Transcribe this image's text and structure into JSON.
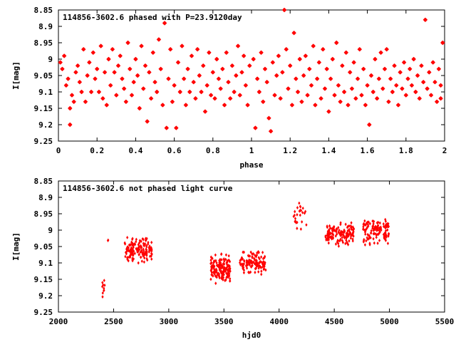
{
  "chart_data": [
    {
      "type": "scatter",
      "title": "114856-3602.6 phased with P=23.9120day",
      "xlabel": "phase",
      "ylabel": "I[mag]",
      "xlim": [
        0,
        2
      ],
      "ylim": [
        9.25,
        8.85
      ],
      "y_inverted": true,
      "xticks": [
        "0",
        "0.2",
        "0.4",
        "0.6",
        "0.8",
        "1",
        "1.2",
        "1.4",
        "1.6",
        "1.8",
        "2"
      ],
      "yticks": [
        "8.85",
        "8.9",
        "8.95",
        "9",
        "9.05",
        "9.1",
        "9.15",
        "9.2",
        "9.25"
      ],
      "marker": "star",
      "color": "#ff0000",
      "points": [
        [
          0.01,
          9.01
        ],
        [
          0.02,
          9.03
        ],
        [
          0.03,
          8.99
        ],
        [
          0.04,
          9.08
        ],
        [
          0.05,
          9.06
        ],
        [
          0.06,
          9.2
        ],
        [
          0.06,
          9.15
        ],
        [
          0.07,
          9.11
        ],
        [
          0.08,
          9.13
        ],
        [
          0.09,
          9.04
        ],
        [
          0.1,
          9.02
        ],
        [
          0.11,
          9.07
        ],
        [
          0.12,
          9.1
        ],
        [
          0.13,
          8.97
        ],
        [
          0.14,
          9.13
        ],
        [
          0.15,
          9.05
        ],
        [
          0.16,
          9.01
        ],
        [
          0.17,
          9.1
        ],
        [
          0.18,
          8.98
        ],
        [
          0.19,
          9.06
        ],
        [
          0.2,
          9.03
        ],
        [
          0.21,
          9.1
        ],
        [
          0.22,
          8.96
        ],
        [
          0.23,
          9.12
        ],
        [
          0.24,
          9.04
        ],
        [
          0.25,
          9.14
        ],
        [
          0.26,
          9.0
        ],
        [
          0.27,
          9.08
        ],
        [
          0.28,
          8.97
        ],
        [
          0.29,
          9.04
        ],
        [
          0.3,
          9.11
        ],
        [
          0.31,
          9.02
        ],
        [
          0.32,
          8.99
        ],
        [
          0.33,
          9.06
        ],
        [
          0.34,
          9.09
        ],
        [
          0.35,
          9.13
        ],
        [
          0.36,
          8.95
        ],
        [
          0.37,
          9.03
        ],
        [
          0.38,
          9.11
        ],
        [
          0.39,
          9.07
        ],
        [
          0.4,
          9.0
        ],
        [
          0.41,
          9.05
        ],
        [
          0.42,
          9.15
        ],
        [
          0.43,
          8.96
        ],
        [
          0.44,
          9.09
        ],
        [
          0.45,
          9.02
        ],
        [
          0.46,
          9.19
        ],
        [
          0.47,
          9.04
        ],
        [
          0.48,
          9.12
        ],
        [
          0.49,
          8.98
        ],
        [
          0.5,
          9.07
        ],
        [
          0.51,
          9.1
        ],
        [
          0.52,
          8.94
        ],
        [
          0.53,
          9.03
        ],
        [
          0.54,
          9.14
        ],
        [
          0.55,
          8.89
        ],
        [
          0.56,
          9.21
        ],
        [
          0.57,
          9.06
        ],
        [
          0.58,
          8.97
        ],
        [
          0.59,
          9.13
        ],
        [
          0.6,
          9.08
        ],
        [
          0.61,
          9.21
        ],
        [
          0.62,
          9.01
        ],
        [
          0.63,
          9.1
        ],
        [
          0.64,
          8.96
        ],
        [
          0.65,
          9.06
        ],
        [
          0.66,
          9.14
        ],
        [
          0.67,
          9.03
        ],
        [
          0.68,
          9.1
        ],
        [
          0.69,
          8.99
        ],
        [
          0.7,
          9.07
        ],
        [
          0.71,
          9.12
        ],
        [
          0.72,
          8.97
        ],
        [
          0.73,
          9.05
        ],
        [
          0.74,
          9.1
        ],
        [
          0.75,
          9.02
        ],
        [
          0.76,
          9.16
        ],
        [
          0.77,
          9.08
        ],
        [
          0.78,
          8.98
        ],
        [
          0.79,
          9.11
        ],
        [
          0.8,
          9.04
        ],
        [
          0.81,
          9.12
        ],
        [
          0.82,
          9.0
        ],
        [
          0.83,
          9.06
        ],
        [
          0.84,
          9.09
        ],
        [
          0.85,
          9.03
        ],
        [
          0.86,
          9.14
        ],
        [
          0.87,
          8.98
        ],
        [
          0.88,
          9.07
        ],
        [
          0.89,
          9.12
        ],
        [
          0.9,
          9.02
        ],
        [
          0.91,
          9.1
        ],
        [
          0.92,
          9.05
        ],
        [
          0.93,
          8.96
        ],
        [
          0.94,
          9.11
        ],
        [
          0.95,
          9.04
        ],
        [
          0.96,
          8.99
        ],
        [
          0.97,
          9.08
        ],
        [
          0.98,
          9.14
        ],
        [
          0.99,
          9.02
        ],
        [
          1.01,
          9.0
        ],
        [
          1.02,
          9.21
        ],
        [
          1.03,
          9.06
        ],
        [
          1.04,
          9.1
        ],
        [
          1.05,
          8.98
        ],
        [
          1.06,
          9.13
        ],
        [
          1.07,
          9.03
        ],
        [
          1.08,
          9.07
        ],
        [
          1.09,
          9.18
        ],
        [
          1.1,
          9.22
        ],
        [
          1.11,
          9.01
        ],
        [
          1.12,
          9.11
        ],
        [
          1.13,
          9.05
        ],
        [
          1.14,
          8.99
        ],
        [
          1.15,
          9.12
        ],
        [
          1.16,
          9.04
        ],
        [
          1.17,
          8.85
        ],
        [
          1.18,
          8.97
        ],
        [
          1.19,
          9.09
        ],
        [
          1.2,
          9.02
        ],
        [
          1.21,
          9.14
        ],
        [
          1.22,
          8.92
        ],
        [
          1.23,
          9.06
        ],
        [
          1.24,
          9.1
        ],
        [
          1.25,
          9.0
        ],
        [
          1.26,
          9.13
        ],
        [
          1.27,
          9.05
        ],
        [
          1.28,
          8.99
        ],
        [
          1.29,
          9.11
        ],
        [
          1.3,
          9.03
        ],
        [
          1.31,
          9.08
        ],
        [
          1.32,
          8.96
        ],
        [
          1.33,
          9.14
        ],
        [
          1.34,
          9.06
        ],
        [
          1.35,
          9.01
        ],
        [
          1.36,
          9.12
        ],
        [
          1.37,
          8.97
        ],
        [
          1.38,
          9.09
        ],
        [
          1.39,
          9.03
        ],
        [
          1.4,
          9.16
        ],
        [
          1.41,
          9.06
        ],
        [
          1.42,
          9.0
        ],
        [
          1.43,
          9.11
        ],
        [
          1.44,
          8.95
        ],
        [
          1.45,
          9.08
        ],
        [
          1.46,
          9.13
        ],
        [
          1.47,
          9.02
        ],
        [
          1.48,
          9.1
        ],
        [
          1.49,
          8.98
        ],
        [
          1.5,
          9.14
        ],
        [
          1.51,
          9.04
        ],
        [
          1.52,
          9.09
        ],
        [
          1.53,
          9.01
        ],
        [
          1.54,
          9.12
        ],
        [
          1.55,
          9.06
        ],
        [
          1.56,
          8.97
        ],
        [
          1.57,
          9.11
        ],
        [
          1.58,
          9.03
        ],
        [
          1.59,
          9.14
        ],
        [
          1.6,
          9.08
        ],
        [
          1.61,
          9.2
        ],
        [
          1.62,
          9.05
        ],
        [
          1.63,
          9.1
        ],
        [
          1.64,
          9.0
        ],
        [
          1.65,
          9.12
        ],
        [
          1.66,
          9.06
        ],
        [
          1.67,
          8.98
        ],
        [
          1.68,
          9.09
        ],
        [
          1.69,
          9.03
        ],
        [
          1.7,
          8.97
        ],
        [
          1.71,
          9.13
        ],
        [
          1.72,
          9.06
        ],
        [
          1.73,
          9.1
        ],
        [
          1.74,
          9.02
        ],
        [
          1.75,
          9.08
        ],
        [
          1.76,
          9.14
        ],
        [
          1.77,
          9.04
        ],
        [
          1.78,
          9.09
        ],
        [
          1.79,
          9.01
        ],
        [
          1.8,
          9.11
        ],
        [
          1.81,
          9.06
        ],
        [
          1.82,
          9.03
        ],
        [
          1.83,
          9.08
        ],
        [
          1.84,
          9.0
        ],
        [
          1.85,
          9.1
        ],
        [
          1.86,
          9.05
        ],
        [
          1.87,
          9.12
        ],
        [
          1.88,
          9.02
        ],
        [
          1.89,
          9.07
        ],
        [
          1.9,
          8.88
        ],
        [
          1.91,
          9.09
        ],
        [
          1.92,
          9.04
        ],
        [
          1.93,
          9.11
        ],
        [
          1.94,
          9.01
        ],
        [
          1.95,
          9.07
        ],
        [
          1.96,
          9.13
        ],
        [
          1.97,
          9.03
        ],
        [
          1.98,
          9.08
        ],
        [
          1.99,
          8.95
        ],
        [
          1.98,
          9.12
        ]
      ]
    },
    {
      "type": "scatter",
      "title": "114856-3602.6 not phased light curve",
      "xlabel": "hjd0",
      "ylabel": "I[mag]",
      "xlim": [
        2000,
        5500
      ],
      "ylim": [
        9.25,
        8.85
      ],
      "y_inverted": true,
      "xticks": [
        "2000",
        "2500",
        "3000",
        "3500",
        "4000",
        "4500",
        "5000",
        "5500"
      ],
      "yticks": [
        "8.85",
        "8.9",
        "8.95",
        "9",
        "9.05",
        "9.1",
        "9.15",
        "9.2",
        "9.25"
      ],
      "marker": "dot",
      "color": "#ff0000",
      "clusters": [
        {
          "x_range": [
            2395,
            2420
          ],
          "y_center": 9.17,
          "y_spread": 0.05,
          "count": 10
        },
        {
          "x_range": [
            2440,
            2460
          ],
          "y_center": 9.03,
          "y_spread": 0.005,
          "count": 2
        },
        {
          "x_range": [
            2600,
            2850
          ],
          "y_center": 9.06,
          "y_spread": 0.05,
          "count": 150
        },
        {
          "x_range": [
            3380,
            3560
          ],
          "y_center": 9.12,
          "y_spread": 0.055,
          "count": 170
        },
        {
          "x_range": [
            3640,
            3880
          ],
          "y_center": 9.1,
          "y_spread": 0.045,
          "count": 120
        },
        {
          "x_range": [
            4130,
            4250
          ],
          "y_center": 8.95,
          "y_spread": 0.06,
          "count": 25
        },
        {
          "x_range": [
            4420,
            4680
          ],
          "y_center": 9.01,
          "y_spread": 0.045,
          "count": 140
        },
        {
          "x_range": [
            4760,
            5000
          ],
          "y_center": 9.0,
          "y_spread": 0.06,
          "count": 120
        }
      ]
    }
  ]
}
